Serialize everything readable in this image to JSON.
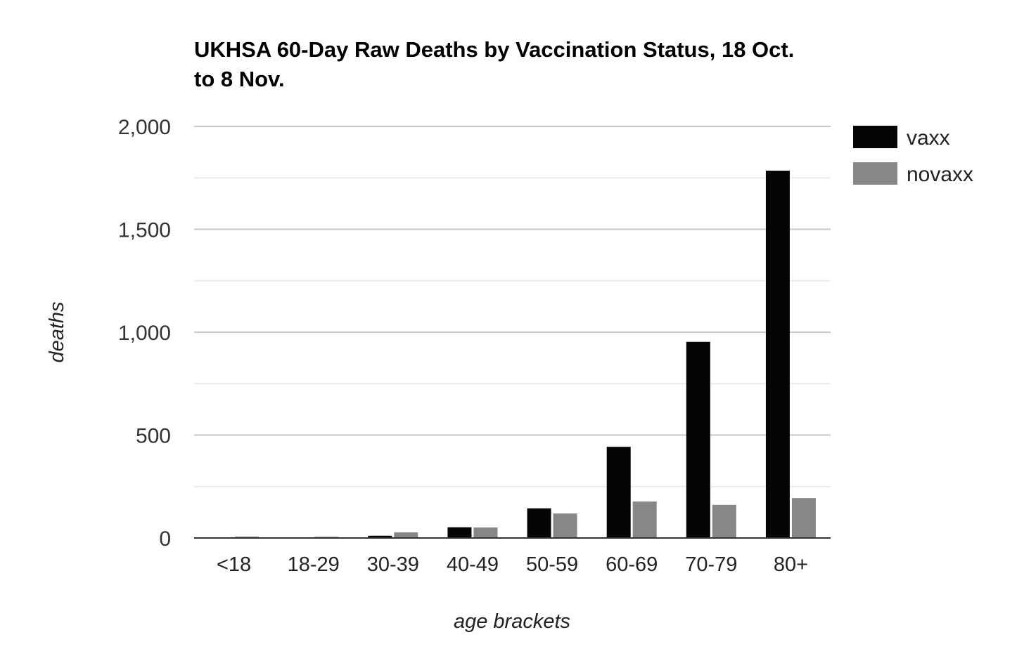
{
  "chart_data": {
    "type": "bar",
    "title_lines": [
      "UKHSA 60-Day Raw Deaths by Vaccination Status, 18 Oct.",
      "to 8 Nov."
    ],
    "xlabel": "age brackets",
    "ylabel": "deaths",
    "categories": [
      "<18",
      "18-29",
      "30-39",
      "40-49",
      "50-59",
      "60-69",
      "70-79",
      "80+"
    ],
    "series": [
      {
        "name": "vaxx",
        "color": "#050505",
        "values": [
          1,
          3,
          11,
          52,
          144,
          443,
          953,
          1785
        ]
      },
      {
        "name": "novaxx",
        "color": "#878787",
        "values": [
          7,
          6,
          27,
          51,
          119,
          177,
          161,
          194
        ]
      }
    ],
    "ylim": [
      0,
      2000
    ],
    "yticks": [
      0,
      500,
      1000,
      1500,
      2000
    ],
    "ytick_labels": [
      "0",
      "500",
      "1,000",
      "1,500",
      "2,000"
    ],
    "minor_gridlines": [
      250,
      750,
      1250,
      1750
    ],
    "grid": true,
    "legend_position": "right"
  }
}
